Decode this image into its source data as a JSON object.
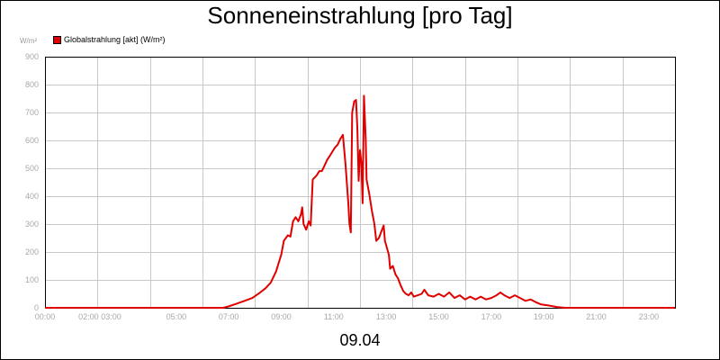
{
  "colors": {
    "series": "#e00000",
    "grid": "#c8c8c8",
    "ticks": "#a8a8a8"
  },
  "chart_data": {
    "type": "line",
    "title": "Sonneneinstrahlung [pro Tag]",
    "unit_label": "W/m²",
    "date_label": "09.04",
    "legend": {
      "position": "top-left",
      "entries": [
        "Globalstrahlung [akt] (W/m²)"
      ]
    },
    "grid": true,
    "xlim": [
      0,
      24
    ],
    "ylim": [
      0,
      900
    ],
    "y_ticks": [
      0,
      100,
      200,
      300,
      400,
      500,
      600,
      700,
      800,
      900
    ],
    "x_tick_labels": [
      {
        "hour": 0,
        "label": "00:00"
      },
      {
        "hour": 2,
        "label": "02:00"
      },
      {
        "hour": 3,
        "label": "03:00"
      },
      {
        "hour": 5,
        "label": "05:00"
      },
      {
        "hour": 7,
        "label": "07:00"
      },
      {
        "hour": 9,
        "label": "09:00"
      },
      {
        "hour": 11,
        "label": "11:00"
      },
      {
        "hour": 13,
        "label": "13:00"
      },
      {
        "hour": 15,
        "label": "15:00"
      },
      {
        "hour": 17,
        "label": "17:00"
      },
      {
        "hour": 19,
        "label": "19:00"
      },
      {
        "hour": 21,
        "label": "21:00"
      },
      {
        "hour": 23,
        "label": "23:00"
      }
    ],
    "series": [
      {
        "name": "Globalstrahlung [akt] (W/m²)",
        "points": [
          [
            0,
            0
          ],
          [
            6.8,
            0
          ],
          [
            7.0,
            5
          ],
          [
            7.3,
            15
          ],
          [
            7.6,
            25
          ],
          [
            7.9,
            35
          ],
          [
            8.2,
            55
          ],
          [
            8.4,
            70
          ],
          [
            8.6,
            90
          ],
          [
            8.8,
            130
          ],
          [
            9.0,
            190
          ],
          [
            9.1,
            240
          ],
          [
            9.25,
            260
          ],
          [
            9.35,
            255
          ],
          [
            9.45,
            310
          ],
          [
            9.55,
            325
          ],
          [
            9.65,
            310
          ],
          [
            9.75,
            335
          ],
          [
            9.8,
            360
          ],
          [
            9.85,
            300
          ],
          [
            9.95,
            280
          ],
          [
            10.05,
            310
          ],
          [
            10.12,
            295
          ],
          [
            10.2,
            460
          ],
          [
            10.35,
            475
          ],
          [
            10.45,
            490
          ],
          [
            10.55,
            490
          ],
          [
            10.65,
            510
          ],
          [
            10.75,
            530
          ],
          [
            10.85,
            545
          ],
          [
            10.95,
            560
          ],
          [
            11.05,
            575
          ],
          [
            11.15,
            585
          ],
          [
            11.25,
            605
          ],
          [
            11.35,
            620
          ],
          [
            11.45,
            510
          ],
          [
            11.55,
            380
          ],
          [
            11.6,
            300
          ],
          [
            11.65,
            270
          ],
          [
            11.7,
            700
          ],
          [
            11.78,
            740
          ],
          [
            11.85,
            745
          ],
          [
            11.9,
            640
          ],
          [
            11.95,
            455
          ],
          [
            12.0,
            565
          ],
          [
            12.05,
            520
          ],
          [
            12.1,
            375
          ],
          [
            12.15,
            760
          ],
          [
            12.22,
            600
          ],
          [
            12.25,
            460
          ],
          [
            12.35,
            410
          ],
          [
            12.45,
            350
          ],
          [
            12.55,
            300
          ],
          [
            12.62,
            240
          ],
          [
            12.72,
            250
          ],
          [
            12.8,
            270
          ],
          [
            12.9,
            295
          ],
          [
            12.95,
            240
          ],
          [
            13.1,
            190
          ],
          [
            13.15,
            140
          ],
          [
            13.25,
            150
          ],
          [
            13.35,
            120
          ],
          [
            13.45,
            105
          ],
          [
            13.55,
            80
          ],
          [
            13.65,
            60
          ],
          [
            13.75,
            50
          ],
          [
            13.85,
            45
          ],
          [
            13.95,
            55
          ],
          [
            14.05,
            40
          ],
          [
            14.2,
            45
          ],
          [
            14.35,
            50
          ],
          [
            14.45,
            65
          ],
          [
            14.6,
            45
          ],
          [
            14.8,
            40
          ],
          [
            15.0,
            50
          ],
          [
            15.2,
            40
          ],
          [
            15.4,
            55
          ],
          [
            15.6,
            35
          ],
          [
            15.8,
            45
          ],
          [
            16.0,
            30
          ],
          [
            16.2,
            40
          ],
          [
            16.4,
            30
          ],
          [
            16.6,
            40
          ],
          [
            16.8,
            30
          ],
          [
            17.0,
            35
          ],
          [
            17.2,
            45
          ],
          [
            17.35,
            55
          ],
          [
            17.5,
            45
          ],
          [
            17.7,
            35
          ],
          [
            17.9,
            45
          ],
          [
            18.1,
            35
          ],
          [
            18.3,
            25
          ],
          [
            18.5,
            30
          ],
          [
            18.7,
            20
          ],
          [
            18.9,
            12
          ],
          [
            19.2,
            8
          ],
          [
            19.5,
            3
          ],
          [
            19.8,
            0
          ],
          [
            24,
            0
          ]
        ]
      }
    ]
  }
}
